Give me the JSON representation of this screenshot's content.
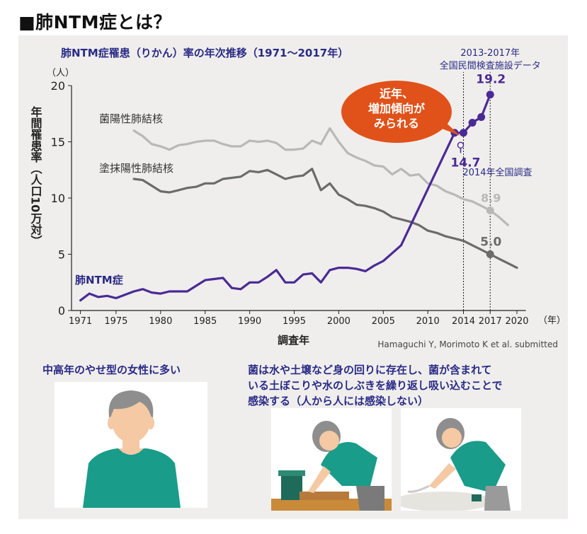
{
  "heading": "■肺NTM症とは？",
  "chart_data": {
    "type": "line",
    "title": "肺NTM症罹患（りかん）率の年次推移（1971〜2017年）",
    "ylabel": "年間罹患率（人口10万対）",
    "yunit": "（人）",
    "xlabel": "調査年",
    "xunit": "（年）",
    "ylim": [
      0,
      20
    ],
    "xlim": [
      1970,
      2021
    ],
    "yticks": [
      "0",
      "5",
      "10",
      "15",
      "20"
    ],
    "xticks": [
      "1971",
      "1975",
      "1980",
      "1985",
      "1990",
      "1995",
      "2000",
      "2005",
      "2010",
      "2014",
      "2017",
      "2020"
    ],
    "source": "Hamaguchi Y, Morimoto K et al. submitted",
    "series": [
      {
        "name": "菌陽性肺結核",
        "color": "#b8b8b8",
        "x": [
          1977,
          1978,
          1979,
          1980,
          1981,
          1982,
          1983,
          1984,
          1985,
          1986,
          1987,
          1988,
          1989,
          1990,
          1991,
          1992,
          1993,
          1994,
          1995,
          1996,
          1997,
          1998,
          1999,
          2000,
          2001,
          2002,
          2003,
          2004,
          2005,
          2006,
          2007,
          2008,
          2009,
          2010,
          2011,
          2012,
          2013,
          2014,
          2015,
          2016,
          2017,
          2018,
          2019
        ],
        "values": [
          16.0,
          15.5,
          14.8,
          14.6,
          14.3,
          14.7,
          14.8,
          15.0,
          15.1,
          15.1,
          14.8,
          14.6,
          14.6,
          15.1,
          15.0,
          15.1,
          14.9,
          14.3,
          14.3,
          14.4,
          15.1,
          14.8,
          16.2,
          15.0,
          14.0,
          13.6,
          13.3,
          12.9,
          12.8,
          12.1,
          12.6,
          12.0,
          12.1,
          11.3,
          11.1,
          10.6,
          10.3,
          9.9,
          9.7,
          9.3,
          8.9,
          8.3,
          7.6
        ]
      },
      {
        "name": "塗抹陽性肺結核",
        "color": "#6b6b6b",
        "x": [
          1977,
          1978,
          1979,
          1980,
          1981,
          1982,
          1983,
          1984,
          1985,
          1986,
          1987,
          1988,
          1989,
          1990,
          1991,
          1992,
          1993,
          1994,
          1995,
          1996,
          1997,
          1998,
          1999,
          2000,
          2001,
          2002,
          2003,
          2004,
          2005,
          2006,
          2007,
          2008,
          2009,
          2010,
          2011,
          2012,
          2013,
          2014,
          2015,
          2016,
          2017,
          2018,
          2019,
          2020
        ],
        "values": [
          11.7,
          11.6,
          11.1,
          10.6,
          10.5,
          10.7,
          10.9,
          11.0,
          11.3,
          11.3,
          11.7,
          11.8,
          11.9,
          12.4,
          12.3,
          12.5,
          12.1,
          11.7,
          11.9,
          12.0,
          12.6,
          10.7,
          11.3,
          10.3,
          9.9,
          9.4,
          9.3,
          9.1,
          8.8,
          8.3,
          8.1,
          7.9,
          7.6,
          7.1,
          6.9,
          6.6,
          6.4,
          6.2,
          5.8,
          5.4,
          5.0,
          4.6,
          4.2,
          3.8
        ]
      },
      {
        "name": "肺NTM症",
        "color": "#4b2a95",
        "x": [
          1971,
          1972,
          1973,
          1974,
          1975,
          1976,
          1977,
          1978,
          1979,
          1980,
          1981,
          1982,
          1983,
          1984,
          1985,
          1986,
          1987,
          1988,
          1989,
          1990,
          1991,
          1992,
          1993,
          1994,
          1995,
          1996,
          1997,
          1998,
          1999,
          2000,
          2001,
          2002,
          2003,
          2004,
          2005,
          2006,
          2007,
          2013,
          2014,
          2015,
          2016,
          2017
        ],
        "values": [
          0.9,
          1.5,
          1.2,
          1.3,
          1.1,
          1.4,
          1.7,
          1.9,
          1.6,
          1.5,
          1.7,
          1.7,
          1.7,
          2.2,
          2.7,
          2.8,
          2.9,
          2.0,
          1.9,
          2.5,
          2.5,
          3.0,
          3.6,
          2.5,
          2.5,
          3.2,
          3.3,
          2.5,
          3.6,
          3.8,
          3.8,
          3.7,
          3.5,
          4.0,
          4.4,
          5.1,
          5.8,
          15.8,
          15.8,
          16.7,
          17.2,
          19.2
        ]
      }
    ],
    "data_labels": [
      {
        "text": "19.2",
        "x": 2017,
        "y": 19.2,
        "color": "#4b2a95"
      },
      {
        "text": "14.7",
        "x": 2014,
        "y": 14.7,
        "color": "#4b2a95"
      },
      {
        "text": "8.9",
        "x": 2017,
        "y": 8.9,
        "color": "#b8b8b8"
      },
      {
        "text": "5.0",
        "x": 2017,
        "y": 5.0,
        "color": "#6b6b6b"
      }
    ],
    "annotations": {
      "survey_2017_line1": "2013-2017年",
      "survey_2017_line2": "全国民間検査施設データ",
      "survey_2014": "2014年全国調査",
      "bubble": [
        "近年、",
        "増加傾向が",
        "みられる"
      ]
    }
  },
  "bottom": {
    "left_caption": "中高年のやせ型の女性に多い",
    "right_caption_lines": [
      "菌は水や土壌など身の回りに存在し、菌が含まれて",
      "いる土ぼこりや水のしぶきを繰り返し吸い込むことで",
      "感染する（人から人には感染しない）"
    ]
  },
  "colors": {
    "accent": "#2a2a86",
    "bubble": "#e0521a",
    "shirt": "#1a9c8a",
    "hair": "#8e8e8e",
    "skin": "#f4c9a3",
    "panel": "#efeeec"
  }
}
